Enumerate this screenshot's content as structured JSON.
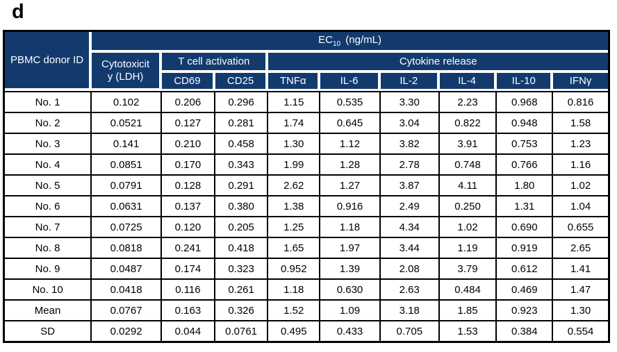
{
  "figure_label": "d",
  "colors": {
    "header_bg": "#123a6d",
    "header_text": "#ffffff",
    "body_text": "#000000",
    "grid_border": "#000000"
  },
  "table": {
    "corner_header": "PBMC donor ID",
    "ec10": {
      "prefix": "EC",
      "sub": "10",
      "suffix": " (ng/mL)"
    },
    "group_headers": {
      "cytotoxicity_line1": "Cytotoxicit",
      "cytotoxicity_line2": "y (LDH)",
      "t_cell_activation": "T cell activation",
      "cytokine_release": "Cytokine release"
    },
    "sub_headers": [
      "CD69",
      "CD25",
      "TNFα",
      "IL-6",
      "IL-2",
      "IL-4",
      "IL-10",
      "IFNγ"
    ],
    "rows": [
      {
        "id": "No. 1",
        "values": [
          "0.102",
          "0.206",
          "0.296",
          "1.15",
          "0.535",
          "3.30",
          "2.23",
          "0.968",
          "0.816"
        ]
      },
      {
        "id": "No. 2",
        "values": [
          "0.0521",
          "0.127",
          "0.281",
          "1.74",
          "0.645",
          "3.04",
          "0.822",
          "0.948",
          "1.58"
        ]
      },
      {
        "id": "No. 3",
        "values": [
          "0.141",
          "0.210",
          "0.458",
          "1.30",
          "1.12",
          "3.82",
          "3.91",
          "0.753",
          "1.23"
        ]
      },
      {
        "id": "No. 4",
        "values": [
          "0.0851",
          "0.170",
          "0.343",
          "1.99",
          "1.28",
          "2.78",
          "0.748",
          "0.766",
          "1.16"
        ]
      },
      {
        "id": "No. 5",
        "values": [
          "0.0791",
          "0.128",
          "0.291",
          "2.62",
          "1.27",
          "3.87",
          "4.11",
          "1.80",
          "1.02"
        ]
      },
      {
        "id": "No. 6",
        "values": [
          "0.0631",
          "0.137",
          "0.380",
          "1.38",
          "0.916",
          "2.49",
          "0.250",
          "1.31",
          "1.04"
        ]
      },
      {
        "id": "No. 7",
        "values": [
          "0.0725",
          "0.120",
          "0.205",
          "1.25",
          "1.18",
          "4.34",
          "1.02",
          "0.690",
          "0.655"
        ]
      },
      {
        "id": "No. 8",
        "values": [
          "0.0818",
          "0.241",
          "0.418",
          "1.65",
          "1.97",
          "3.44",
          "1.19",
          "0.919",
          "2.65"
        ]
      },
      {
        "id": "No. 9",
        "values": [
          "0.0487",
          "0.174",
          "0.323",
          "0.952",
          "1.39",
          "2.08",
          "3.79",
          "0.612",
          "1.41"
        ]
      },
      {
        "id": "No. 10",
        "values": [
          "0.0418",
          "0.116",
          "0.261",
          "1.18",
          "0.630",
          "2.63",
          "0.484",
          "0.469",
          "1.47"
        ]
      },
      {
        "id": "Mean",
        "values": [
          "0.0767",
          "0.163",
          "0.326",
          "1.52",
          "1.09",
          "3.18",
          "1.85",
          "0.923",
          "1.30"
        ]
      },
      {
        "id": "SD",
        "values": [
          "0.0292",
          "0.044",
          "0.0761",
          "0.495",
          "0.433",
          "0.705",
          "1.53",
          "0.384",
          "0.554"
        ]
      }
    ]
  }
}
